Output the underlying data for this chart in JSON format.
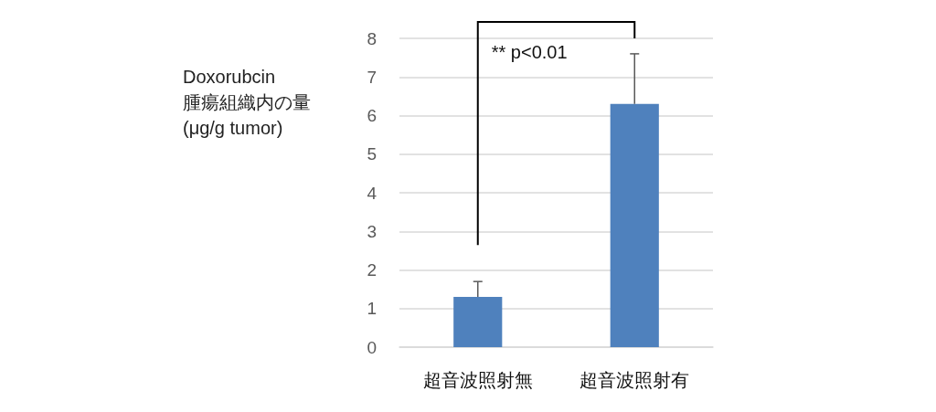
{
  "chart_data": {
    "type": "bar",
    "ylabel": "Doxorubcin\n腫瘍組織内の量\n(μg/g tumor)",
    "categories": [
      "超音波照射無",
      "超音波照射有"
    ],
    "values": [
      1.3,
      6.3
    ],
    "color": "#4f81bd",
    "errors": [
      [
        1.3,
        1.7
      ],
      [
        6.3,
        7.6
      ]
    ],
    "ylim": [
      0,
      8
    ],
    "yticks": [
      0,
      1,
      2,
      3,
      4,
      5,
      6,
      7,
      8
    ],
    "grid": "y",
    "annotations": [
      "** p<0.01"
    ]
  }
}
